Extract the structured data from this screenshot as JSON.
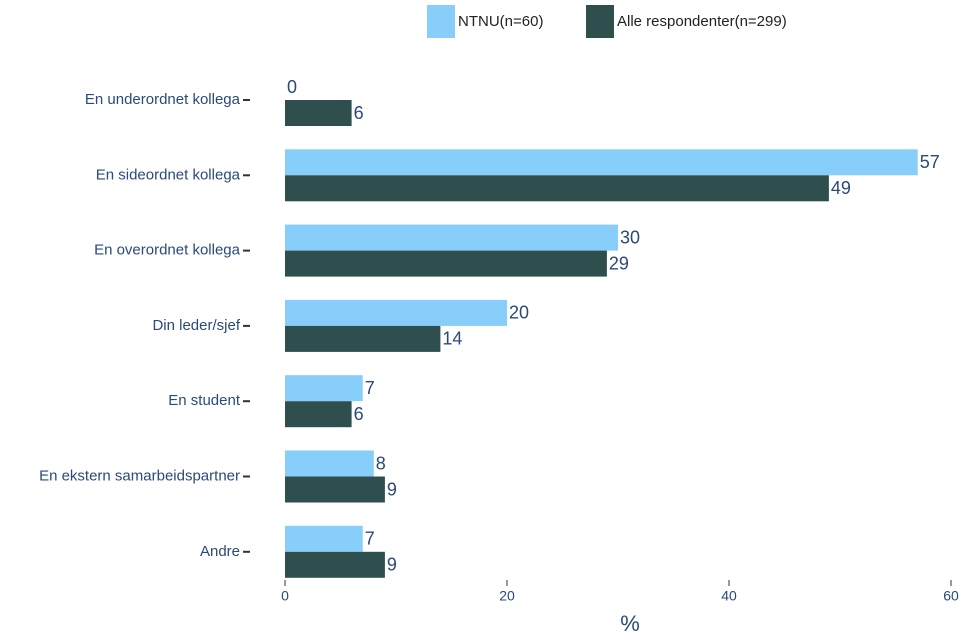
{
  "chart_data": {
    "type": "bar",
    "orientation": "horizontal",
    "xlabel": "%",
    "categories": [
      "En underordnet kollega",
      "En sideordnet kollega",
      "En overordnet kollega",
      "Din leder/sjef",
      "En student",
      "En ekstern samarbeidspartner",
      "Andre"
    ],
    "series": [
      {
        "name": "NTNU(n=60)",
        "color": "#87cefa",
        "values": [
          0,
          57,
          30,
          20,
          7,
          8,
          7
        ]
      },
      {
        "name": "Alle respondenter(n=299)",
        "color": "#2f4f4f",
        "values": [
          6,
          49,
          29,
          14,
          6,
          9,
          9
        ]
      }
    ],
    "xlim": [
      0,
      60
    ],
    "xticks": [
      0,
      20,
      40,
      60
    ],
    "grid": false,
    "legend": "top"
  }
}
